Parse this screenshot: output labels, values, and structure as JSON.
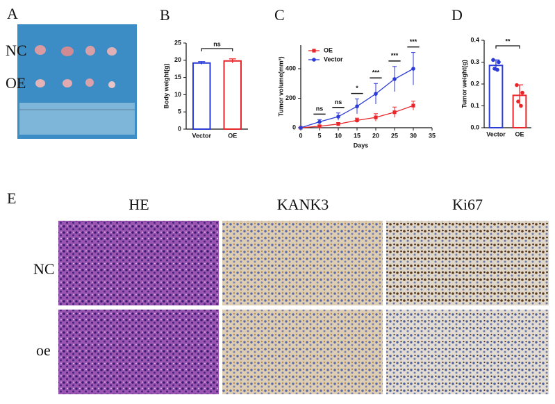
{
  "panel_a": {
    "label": "A",
    "rows": [
      "NC",
      "OE"
    ]
  },
  "chart_data": [
    {
      "type": "bar",
      "panel_label": "B",
      "ylabel": "Body weight(g)",
      "categories": [
        "Vector",
        "OE"
      ],
      "values": [
        19.2,
        19.8
      ],
      "errors": [
        0.4,
        0.6
      ],
      "colors": [
        "#2b3bd6",
        "#e8262a"
      ],
      "annotation": "ns",
      "ylim": [
        0,
        25
      ],
      "yticks": [
        0,
        5,
        10,
        15,
        20,
        25
      ]
    },
    {
      "type": "line",
      "panel_label": "C",
      "xlabel": "Days",
      "ylabel": "Tumor volume(mm³)",
      "x": [
        0,
        5,
        10,
        15,
        20,
        25,
        30
      ],
      "series": [
        {
          "name": "OE",
          "color": "#e8262a",
          "marker": "square",
          "values": [
            0,
            10,
            25,
            50,
            70,
            105,
            150
          ],
          "errors": [
            0,
            5,
            10,
            15,
            25,
            35,
            30
          ]
        },
        {
          "name": "Vector",
          "color": "#2b3bd6",
          "marker": "circle",
          "values": [
            0,
            40,
            75,
            145,
            230,
            330,
            400
          ],
          "errors": [
            0,
            15,
            25,
            50,
            70,
            85,
            110
          ]
        }
      ],
      "significance": {
        "x": [
          5,
          10,
          15,
          20,
          25,
          30
        ],
        "labels": [
          "ns",
          "ns",
          "*",
          "***",
          "***",
          "***"
        ]
      },
      "xlim": [
        0,
        35
      ],
      "xticks": [
        0,
        5,
        10,
        15,
        20,
        25,
        30,
        35
      ],
      "ylim": [
        0,
        560
      ],
      "yticks": [
        0,
        200,
        400
      ]
    },
    {
      "type": "bar",
      "panel_label": "D",
      "ylabel": "Tumor weight(g)",
      "categories": [
        "Vector",
        "OE"
      ],
      "values": [
        0.285,
        0.148
      ],
      "errors": [
        0.025,
        0.048
      ],
      "points": [
        [
          0.31,
          0.3,
          0.27,
          0.265
        ],
        [
          0.195,
          0.16,
          0.12,
          0.1
        ]
      ],
      "colors": [
        "#2b3bd6",
        "#e8262a"
      ],
      "annotation": "**",
      "ylim": [
        0,
        0.4
      ],
      "yticks": [
        {
          "value": 0,
          "label": "0.0"
        },
        0.1,
        0.2,
        0.3,
        0.4
      ]
    }
  ],
  "panel_e": {
    "label": "E",
    "columns": [
      "HE",
      "KANK3",
      "Ki67"
    ],
    "rows": [
      "NC",
      "oe"
    ]
  }
}
